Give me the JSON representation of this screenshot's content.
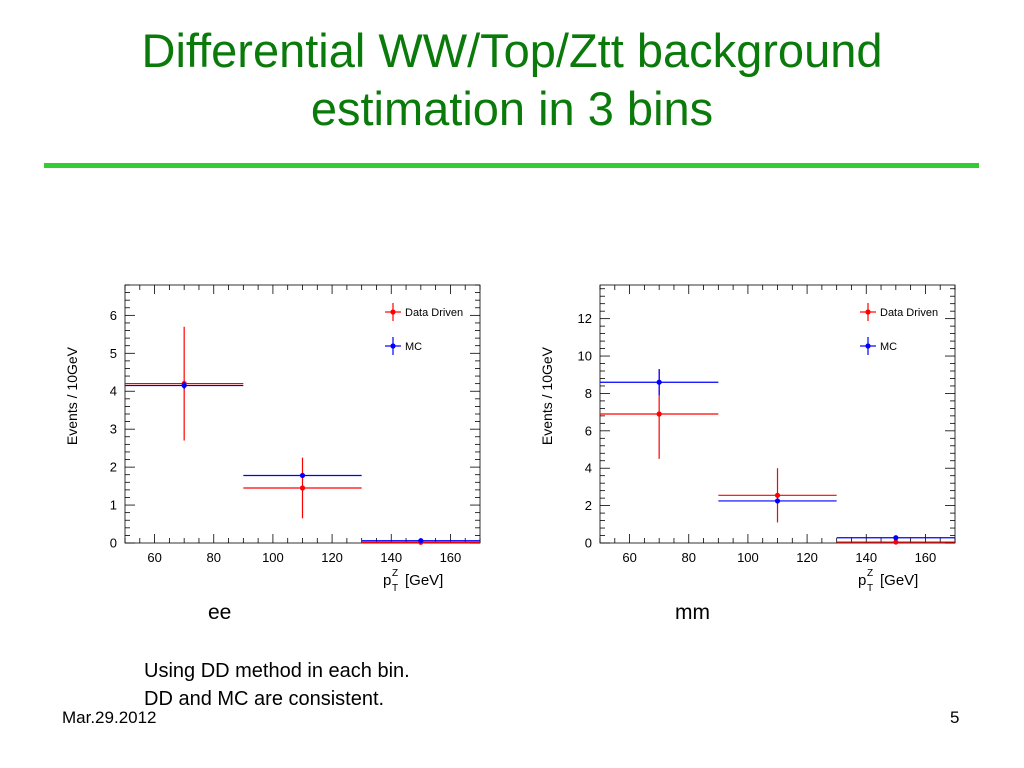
{
  "slide": {
    "title_line1": "Differential WW/Top/Ztt background",
    "title_line2": "estimation in 3 bins",
    "notes": [
      "Using DD method in each bin.",
      "DD and MC are consistent."
    ],
    "footer_date": "Mar.29.2012",
    "page_number": "5",
    "title_color": "#0a7a0a",
    "rule_color": "#33cc33"
  },
  "chart_data": [
    {
      "type": "scatter",
      "channel_label": "ee",
      "ylabel": "Events / 10GeV",
      "xlabel_main": "p",
      "xlabel_sup": "Z",
      "xlabel_sub": "T",
      "xlabel_unit": "[GeV]",
      "xlim": [
        50,
        170
      ],
      "ylim": [
        0,
        6.8
      ],
      "xticks": [
        60,
        80,
        100,
        120,
        140,
        160
      ],
      "yticks": [
        0,
        1,
        2,
        3,
        4,
        5,
        6
      ],
      "legend_position": "top-right",
      "series": [
        {
          "name": "Data Driven",
          "color": "#ff0000",
          "points": [
            {
              "x": 70,
              "xerr_low": 50,
              "xerr_high": 90,
              "y": 4.2,
              "yerr": 1.5
            },
            {
              "x": 110,
              "xerr_low": 90,
              "xerr_high": 130,
              "y": 1.45,
              "yerr": 0.8
            },
            {
              "x": 150,
              "xerr_low": 130,
              "xerr_high": 170,
              "y": 0.02,
              "yerr": 0.03
            }
          ]
        },
        {
          "name": "MC",
          "color": "#0000ff",
          "points": [
            {
              "x": 70,
              "xerr_low": 50,
              "xerr_high": 90,
              "y": 4.15,
              "yerr": 0.1
            },
            {
              "x": 110,
              "xerr_low": 90,
              "xerr_high": 130,
              "y": 1.78,
              "yerr": 0.05
            },
            {
              "x": 150,
              "xerr_low": 130,
              "xerr_high": 170,
              "y": 0.06,
              "yerr": 0.01
            }
          ]
        }
      ]
    },
    {
      "type": "scatter",
      "channel_label": "mm",
      "ylabel": "Events / 10GeV",
      "xlabel_main": "p",
      "xlabel_sup": "Z",
      "xlabel_sub": "T",
      "xlabel_unit": "[GeV]",
      "xlim": [
        50,
        170
      ],
      "ylim": [
        0,
        13.8
      ],
      "xticks": [
        60,
        80,
        100,
        120,
        140,
        160
      ],
      "yticks": [
        0,
        2,
        4,
        6,
        8,
        10,
        12
      ],
      "legend_position": "top-right",
      "series": [
        {
          "name": "Data Driven",
          "color": "#ff0000",
          "points": [
            {
              "x": 70,
              "xerr_low": 50,
              "xerr_high": 90,
              "y": 6.9,
              "yerr": 2.4
            },
            {
              "x": 110,
              "xerr_low": 90,
              "xerr_high": 130,
              "y": 2.55,
              "yerr": 1.45
            },
            {
              "x": 150,
              "xerr_low": 130,
              "xerr_high": 170,
              "y": 0.05,
              "yerr": 0.06
            }
          ]
        },
        {
          "name": "MC",
          "color": "#0000ff",
          "points": [
            {
              "x": 70,
              "xerr_low": 50,
              "xerr_high": 90,
              "y": 8.6,
              "yerr": 0.7
            },
            {
              "x": 110,
              "xerr_low": 90,
              "xerr_high": 130,
              "y": 2.25,
              "yerr": 0.1
            },
            {
              "x": 150,
              "xerr_low": 130,
              "xerr_high": 170,
              "y": 0.28,
              "yerr": 0.03
            }
          ]
        }
      ]
    }
  ]
}
